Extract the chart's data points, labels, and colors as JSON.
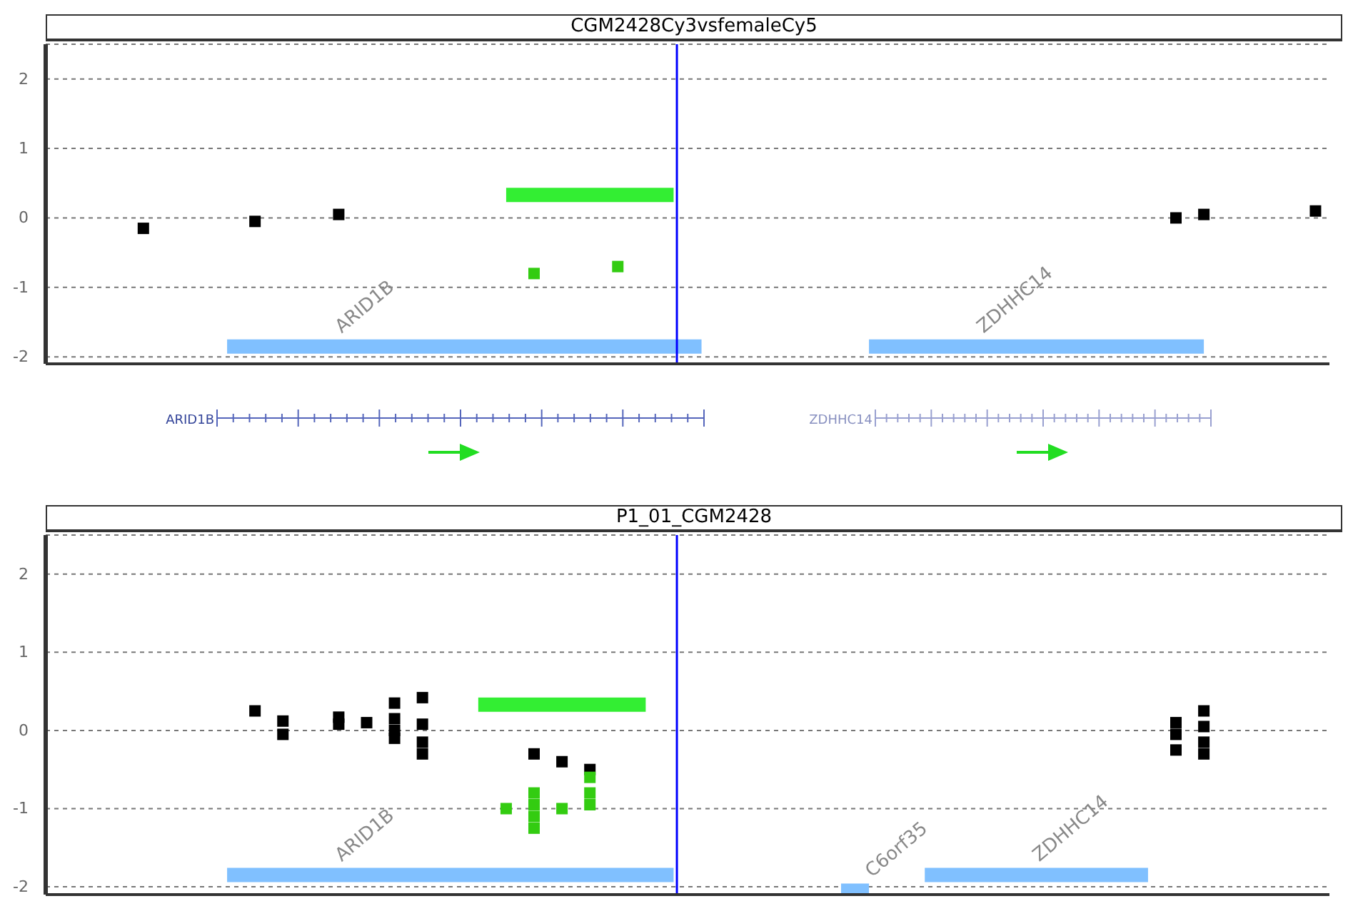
{
  "chart_data": [
    {
      "type": "scatter",
      "title": "CGM2428Cy3vsfemaleCy5",
      "categories": [
        null,
        null,
        null,
        null,
        null,
        null,
        null,
        null,
        null,
        null,
        null,
        null,
        null,
        null,
        null,
        null,
        null,
        null,
        null,
        null,
        null,
        null,
        null,
        null,
        null,
        null,
        null,
        null,
        null,
        null,
        null,
        null,
        null,
        null,
        null,
        null,
        null,
        null,
        null,
        null,
        null,
        null,
        null,
        null,
        null,
        null
      ],
      "ylim": [
        -2.1,
        2.5
      ],
      "yticks": [
        -2,
        -1,
        0,
        1,
        2
      ],
      "grid": "y",
      "marker": "square",
      "series": [
        {
          "color": "#000000",
          "values": [
            null,
            null,
            null,
            -0.15,
            null,
            null,
            null,
            -0.05,
            null,
            null,
            0.05,
            null,
            null,
            null,
            null,
            null,
            null,
            null,
            null,
            null,
            null,
            null,
            null,
            null,
            null,
            null,
            null,
            null,
            null,
            null,
            null,
            null,
            null,
            null,
            null,
            null,
            null,
            null,
            null,
            null,
            0,
            0.05,
            null,
            null,
            null,
            0.1
          ]
        },
        {
          "color": "#33cc11",
          "values": [
            null,
            null,
            null,
            null,
            null,
            null,
            null,
            null,
            null,
            null,
            null,
            null,
            null,
            null,
            null,
            null,
            null,
            -0.8,
            null,
            null,
            -0.7,
            null,
            null,
            null,
            null,
            null,
            null,
            null,
            null,
            null,
            null,
            null,
            null,
            null,
            null,
            null,
            null,
            null,
            null,
            null,
            null,
            null,
            null,
            null,
            null,
            null
          ]
        },
        {
          "type": "line",
          "marker": "none",
          "color": "#33ee33",
          "values": [
            null,
            null,
            null,
            null,
            null,
            null,
            null,
            null,
            null,
            null,
            null,
            null,
            null,
            null,
            null,
            null,
            0.33,
            0.33,
            0.33,
            0.33,
            0.33,
            0.33,
            0.33,
            null,
            null,
            null,
            null,
            null,
            null,
            null,
            null,
            null,
            null,
            null,
            null,
            null,
            null,
            null,
            null,
            null,
            null,
            null,
            null,
            null,
            null,
            null
          ]
        },
        {
          "type": "line",
          "marker": "none",
          "name": "ARID1B",
          "color": "#80c0ff",
          "values": [
            null,
            null,
            null,
            null,
            null,
            null,
            -1.85,
            -1.85,
            -1.85,
            -1.85,
            -1.85,
            -1.85,
            -1.85,
            -1.85,
            -1.85,
            -1.85,
            -1.85,
            -1.85,
            -1.85,
            -1.85,
            -1.85,
            -1.85,
            -1.85,
            -1.85,
            null,
            null,
            null,
            null,
            null,
            null,
            null,
            null,
            null,
            null,
            null,
            null,
            null,
            null,
            null,
            null,
            null,
            null,
            null,
            null,
            null,
            null
          ]
        },
        {
          "type": "line",
          "marker": "none",
          "name": "ZDHHC14",
          "color": "#80c0ff",
          "values": [
            null,
            null,
            null,
            null,
            null,
            null,
            null,
            null,
            null,
            null,
            null,
            null,
            null,
            null,
            null,
            null,
            null,
            null,
            null,
            null,
            null,
            null,
            null,
            null,
            null,
            null,
            null,
            null,
            null,
            -1.85,
            -1.85,
            -1.85,
            -1.85,
            -1.85,
            -1.85,
            -1.85,
            -1.85,
            -1.85,
            -1.85,
            -1.85,
            -1.85,
            -1.85,
            null,
            null,
            null,
            null
          ]
        }
      ],
      "annotations": [
        "ARID1B",
        "ZDHHC14"
      ]
    },
    {
      "type": "scatter",
      "title": "P1_01_CGM2428",
      "categories": [
        null,
        null,
        null,
        null,
        null,
        null,
        null,
        null,
        null,
        null,
        null,
        null,
        null,
        null,
        null,
        null,
        null,
        null,
        null,
        null,
        null,
        null,
        null,
        null,
        null,
        null,
        null,
        null,
        null,
        null,
        null,
        null,
        null,
        null,
        null,
        null,
        null,
        null,
        null,
        null,
        null,
        null,
        null,
        null,
        null,
        null
      ],
      "ylim": [
        -2.1,
        2.5
      ],
      "yticks": [
        -2,
        -1,
        0,
        1,
        2
      ],
      "grid": "y",
      "marker": "square",
      "series": [
        {
          "color": "#000000",
          "values": [
            null,
            null,
            null,
            null,
            null,
            null,
            null,
            0.25,
            0.12,
            null,
            0.17,
            0.1,
            0.35,
            0.42,
            null,
            null,
            null,
            -0.3,
            -0.4,
            -0.5,
            null,
            null,
            null,
            null,
            null,
            null,
            null,
            null,
            null,
            null,
            null,
            null,
            null,
            null,
            null,
            null,
            null,
            null,
            null,
            null,
            0.1,
            0.25,
            null,
            null,
            null,
            null
          ]
        },
        {
          "color": "#000000",
          "values": [
            null,
            null,
            null,
            null,
            null,
            null,
            null,
            null,
            -0.05,
            null,
            0.08,
            null,
            0.15,
            0.08,
            null,
            null,
            null,
            null,
            null,
            null,
            null,
            null,
            null,
            null,
            null,
            null,
            null,
            null,
            null,
            null,
            null,
            null,
            null,
            null,
            null,
            null,
            null,
            null,
            null,
            null,
            -0.05,
            0.05,
            null,
            null,
            null,
            null
          ]
        },
        {
          "color": "#000000",
          "values": [
            null,
            null,
            null,
            null,
            null,
            null,
            null,
            null,
            null,
            null,
            null,
            null,
            0,
            -0.15,
            null,
            null,
            null,
            null,
            null,
            null,
            null,
            null,
            null,
            null,
            null,
            null,
            null,
            null,
            null,
            null,
            null,
            null,
            null,
            null,
            null,
            null,
            null,
            null,
            null,
            null,
            -0.25,
            -0.15,
            null,
            null,
            null,
            null
          ]
        },
        {
          "color": "#000000",
          "values": [
            null,
            null,
            null,
            null,
            null,
            null,
            null,
            null,
            null,
            null,
            null,
            null,
            -0.1,
            -0.3,
            null,
            null,
            null,
            null,
            null,
            null,
            null,
            null,
            null,
            null,
            null,
            null,
            null,
            null,
            null,
            null,
            null,
            null,
            null,
            null,
            null,
            null,
            null,
            null,
            null,
            null,
            null,
            -0.3,
            null,
            null,
            null,
            null
          ]
        },
        {
          "color": "#33cc11",
          "values": [
            null,
            null,
            null,
            null,
            null,
            null,
            null,
            null,
            null,
            null,
            null,
            null,
            null,
            null,
            null,
            null,
            -1,
            -0.8,
            -1,
            -0.6,
            null,
            null,
            null,
            null,
            null,
            null,
            null,
            null,
            null,
            null,
            null,
            null,
            null,
            null,
            null,
            null,
            null,
            null,
            null,
            null,
            null,
            null,
            null,
            null,
            null,
            null
          ]
        },
        {
          "color": "#33cc11",
          "values": [
            null,
            null,
            null,
            null,
            null,
            null,
            null,
            null,
            null,
            null,
            null,
            null,
            null,
            null,
            null,
            null,
            null,
            -0.95,
            null,
            -0.8,
            null,
            null,
            null,
            null,
            null,
            null,
            null,
            null,
            null,
            null,
            null,
            null,
            null,
            null,
            null,
            null,
            null,
            null,
            null,
            null,
            null,
            null,
            null,
            null,
            null,
            null
          ]
        },
        {
          "color": "#33cc11",
          "values": [
            null,
            null,
            null,
            null,
            null,
            null,
            null,
            null,
            null,
            null,
            null,
            null,
            null,
            null,
            null,
            null,
            null,
            -1.1,
            null,
            -0.95,
            null,
            null,
            null,
            null,
            null,
            null,
            null,
            null,
            null,
            null,
            null,
            null,
            null,
            null,
            null,
            null,
            null,
            null,
            null,
            null,
            null,
            null,
            null,
            null,
            null,
            null
          ]
        },
        {
          "color": "#33cc11",
          "values": [
            null,
            null,
            null,
            null,
            null,
            null,
            null,
            null,
            null,
            null,
            null,
            null,
            null,
            null,
            null,
            null,
            null,
            -1.25,
            null,
            null,
            null,
            null,
            null,
            null,
            null,
            null,
            null,
            null,
            null,
            null,
            null,
            null,
            null,
            null,
            null,
            null,
            null,
            null,
            null,
            null,
            null,
            null,
            null,
            null,
            null,
            null
          ]
        },
        {
          "type": "line",
          "marker": "none",
          "color": "#33ee33",
          "values": [
            null,
            null,
            null,
            null,
            null,
            null,
            null,
            null,
            null,
            null,
            null,
            null,
            null,
            null,
            null,
            0.33,
            0.33,
            0.33,
            0.33,
            0.33,
            0.33,
            0.33,
            null,
            null,
            null,
            null,
            null,
            null,
            null,
            null,
            null,
            null,
            null,
            null,
            null,
            null,
            null,
            null,
            null,
            null,
            null,
            null,
            null,
            null,
            null,
            null
          ]
        },
        {
          "type": "line",
          "marker": "none",
          "name": "ARID1B",
          "color": "#80c0ff",
          "values": [
            null,
            null,
            null,
            null,
            null,
            null,
            -1.85,
            -1.85,
            -1.85,
            -1.85,
            -1.85,
            -1.85,
            -1.85,
            -1.85,
            -1.85,
            -1.85,
            -1.85,
            -1.85,
            -1.85,
            -1.85,
            -1.85,
            -1.85,
            -1.85,
            null,
            null,
            null,
            null,
            null,
            null,
            null,
            null,
            null,
            null,
            null,
            null,
            null,
            null,
            null,
            null,
            null,
            null,
            null,
            null,
            null,
            null,
            null
          ]
        },
        {
          "type": "line",
          "marker": "none",
          "name": "C6orf35",
          "color": "#80c0ff",
          "values": [
            null,
            null,
            null,
            null,
            null,
            null,
            null,
            null,
            null,
            null,
            null,
            null,
            null,
            null,
            null,
            null,
            null,
            null,
            null,
            null,
            null,
            null,
            null,
            null,
            null,
            null,
            null,
            null,
            -2.05,
            -2.05,
            null,
            null,
            null,
            null,
            null,
            null,
            null,
            null,
            null,
            null,
            null,
            null,
            null,
            null,
            null,
            null
          ]
        },
        {
          "type": "line",
          "marker": "none",
          "name": "ZDHHC14",
          "color": "#80c0ff",
          "values": [
            null,
            null,
            null,
            null,
            null,
            null,
            null,
            null,
            null,
            null,
            null,
            null,
            null,
            null,
            null,
            null,
            null,
            null,
            null,
            null,
            null,
            null,
            null,
            null,
            null,
            null,
            null,
            null,
            null,
            null,
            null,
            -1.85,
            -1.85,
            -1.85,
            -1.85,
            -1.85,
            -1.85,
            -1.85,
            -1.85,
            -1.85,
            null,
            null,
            null,
            null,
            null,
            null
          ]
        }
      ],
      "legend": false
    }
  ]
}
